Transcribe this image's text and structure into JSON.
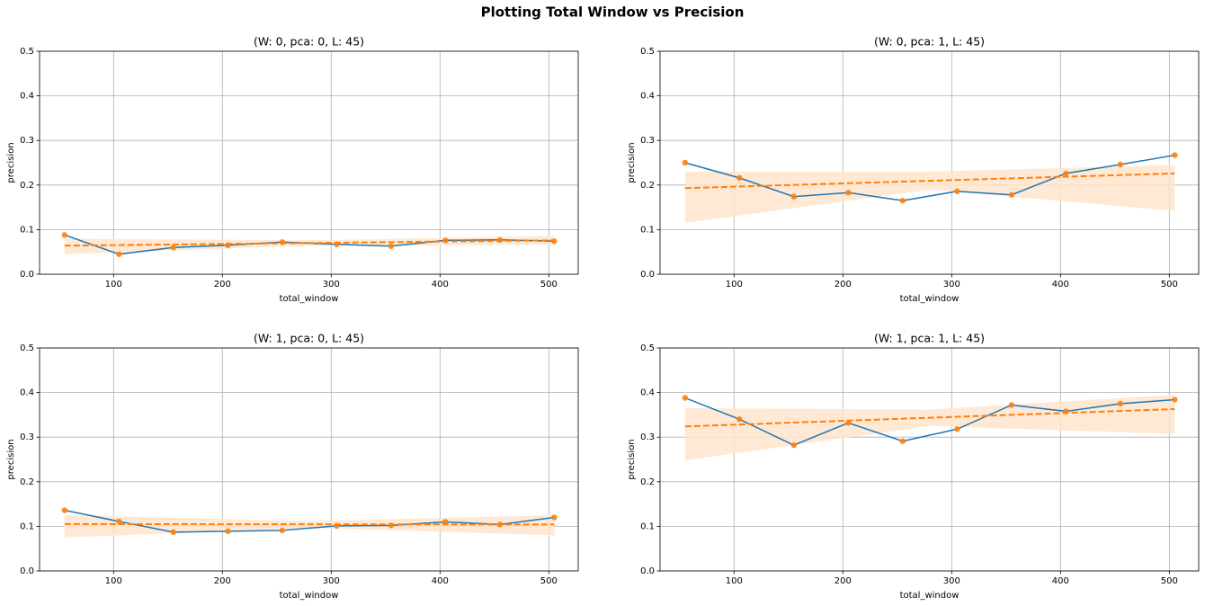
{
  "title": "Plotting Total Window vs Precision",
  "chart_data": [
    {
      "type": "line",
      "title": "(W: 0, pca: 0, L: 45)",
      "x_label": "total_window",
      "y_label": "precision",
      "x": [
        55,
        105,
        155,
        205,
        255,
        305,
        355,
        405,
        455,
        505
      ],
      "series": [
        {
          "color": "#1f77b4",
          "marker_color": "#ff7f0e",
          "values": [
            0.088,
            0.045,
            0.06,
            0.065,
            0.072,
            0.067,
            0.063,
            0.076,
            0.077,
            0.074
          ]
        }
      ],
      "fit": {
        "color": "#ff7f0e",
        "x": [
          55,
          505
        ],
        "values": [
          0.064,
          0.076
        ]
      },
      "band": {
        "color": "#ffe5cc",
        "x": [
          55,
          280,
          505
        ],
        "lower": [
          0.045,
          0.064,
          0.066
        ],
        "upper": [
          0.08,
          0.076,
          0.086
        ]
      },
      "xlim": [
        32,
        527
      ],
      "xticks": [
        100,
        200,
        300,
        400,
        500
      ],
      "ylim": [
        0,
        0.5
      ],
      "yticks": [
        {
          "value": 0,
          "label": "0.0"
        },
        0.1,
        0.2,
        0.3,
        0.4,
        0.5
      ],
      "grid": true
    },
    {
      "type": "line",
      "title": "(W: 0, pca: 1, L: 45)",
      "x_label": "total_window",
      "y_label": "precision",
      "x": [
        55,
        105,
        155,
        205,
        255,
        305,
        355,
        405,
        455,
        505
      ],
      "series": [
        {
          "color": "#1f77b4",
          "marker_color": "#ff7f0e",
          "values": [
            0.25,
            0.216,
            0.174,
            0.183,
            0.165,
            0.186,
            0.178,
            0.226,
            0.246,
            0.267
          ]
        }
      ],
      "fit": {
        "color": "#ff7f0e",
        "x": [
          55,
          505
        ],
        "values": [
          0.193,
          0.226
        ]
      },
      "band": {
        "color": "#ffe5cc",
        "x": [
          55,
          280,
          505
        ],
        "lower": [
          0.115,
          0.19,
          0.142
        ],
        "upper": [
          0.23,
          0.23,
          0.245
        ]
      },
      "xlim": [
        32,
        527
      ],
      "xticks": [
        100,
        200,
        300,
        400,
        500
      ],
      "ylim": [
        0,
        0.5
      ],
      "yticks": [
        {
          "value": 0,
          "label": "0.0"
        },
        0.1,
        0.2,
        0.3,
        0.4,
        0.5
      ],
      "grid": true
    },
    {
      "type": "line",
      "title": "(W: 1, pca: 0, L: 45)",
      "x_label": "total_window",
      "y_label": "precision",
      "x": [
        55,
        105,
        155,
        205,
        255,
        305,
        355,
        405,
        455,
        505
      ],
      "series": [
        {
          "color": "#1f77b4",
          "marker_color": "#ff7f0e",
          "values": [
            0.136,
            0.111,
            0.087,
            0.089,
            0.091,
            0.101,
            0.102,
            0.11,
            0.104,
            0.12
          ]
        }
      ],
      "fit": {
        "color": "#ff7f0e",
        "x": [
          55,
          505
        ],
        "values": [
          0.105,
          0.104
        ]
      },
      "band": {
        "color": "#ffe5cc",
        "x": [
          55,
          280,
          505
        ],
        "lower": [
          0.075,
          0.097,
          0.08
        ],
        "upper": [
          0.125,
          0.112,
          0.125
        ]
      },
      "xlim": [
        32,
        527
      ],
      "xticks": [
        100,
        200,
        300,
        400,
        500
      ],
      "ylim": [
        0,
        0.5
      ],
      "yticks": [
        {
          "value": 0,
          "label": "0.0"
        },
        0.1,
        0.2,
        0.3,
        0.4,
        0.5
      ],
      "grid": true
    },
    {
      "type": "line",
      "title": "(W: 1, pca: 1, L: 45)",
      "x_label": "total_window",
      "y_label": "precision",
      "x": [
        55,
        105,
        155,
        205,
        255,
        305,
        355,
        405,
        455,
        505
      ],
      "series": [
        {
          "color": "#1f77b4",
          "marker_color": "#ff7f0e",
          "values": [
            0.388,
            0.34,
            0.282,
            0.332,
            0.291,
            0.318,
            0.372,
            0.358,
            0.375,
            0.384
          ]
        }
      ],
      "fit": {
        "color": "#ff7f0e",
        "x": [
          55,
          505
        ],
        "values": [
          0.324,
          0.363
        ]
      },
      "band": {
        "color": "#ffe5cc",
        "x": [
          55,
          280,
          505
        ],
        "lower": [
          0.248,
          0.325,
          0.307
        ],
        "upper": [
          0.365,
          0.362,
          0.395
        ]
      },
      "xlim": [
        32,
        527
      ],
      "xticks": [
        100,
        200,
        300,
        400,
        500
      ],
      "ylim": [
        0,
        0.5
      ],
      "yticks": [
        {
          "value": 0,
          "label": "0.0"
        },
        0.1,
        0.2,
        0.3,
        0.4,
        0.5
      ],
      "grid": true
    }
  ]
}
